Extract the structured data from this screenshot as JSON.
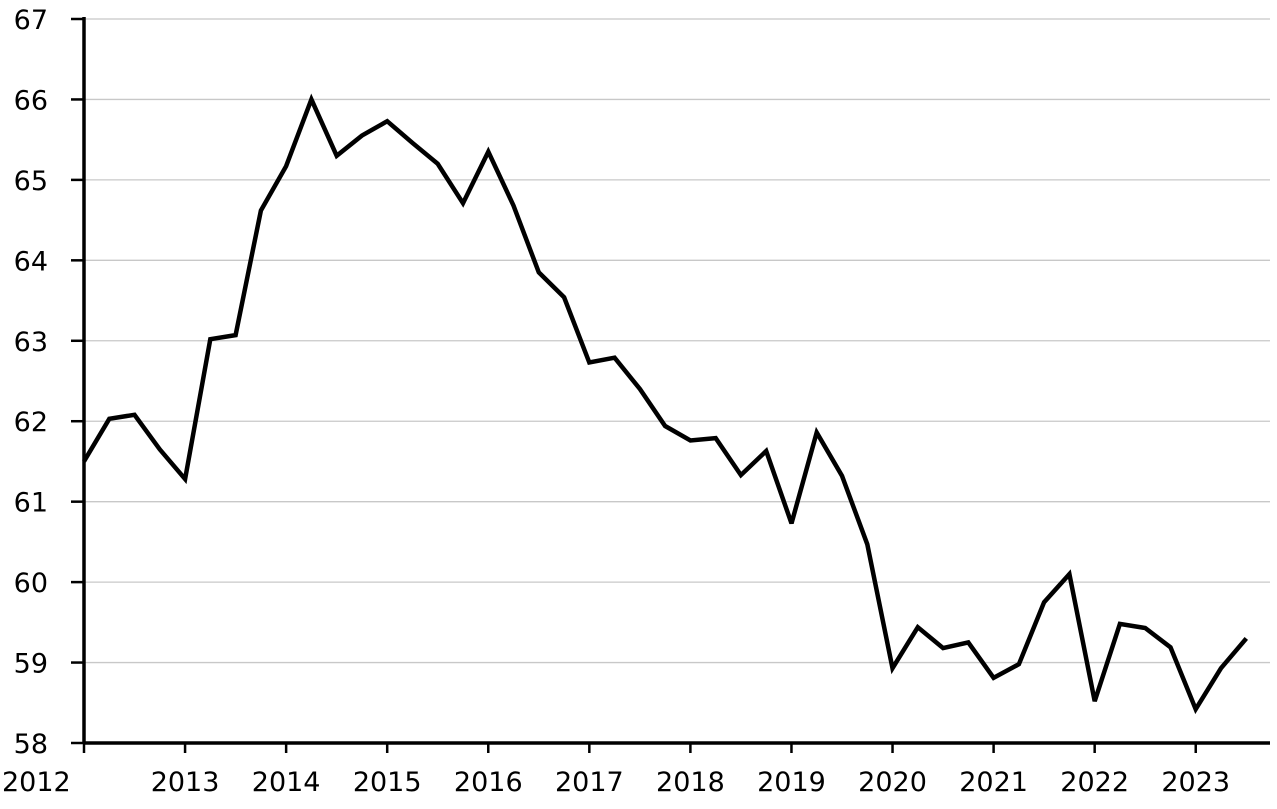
{
  "chart_data": {
    "type": "line",
    "title": "",
    "xlabel": "",
    "ylabel": "",
    "ylim": [
      58,
      67
    ],
    "xlim": [
      2012,
      2023.65
    ],
    "grid": "horizontal",
    "legend": "none",
    "colors": {
      "line": "#000000",
      "grid": "#c8c8c8",
      "axis": "#000000",
      "background": "#ffffff"
    },
    "x_tick_labels": [
      "2012",
      "2013",
      "2014",
      "2015",
      "2016",
      "2017",
      "2018",
      "2019",
      "2020",
      "2021",
      "2022",
      "2023"
    ],
    "y_tick_labels": [
      "58",
      "59",
      "60",
      "61",
      "62",
      "63",
      "64",
      "65",
      "66",
      "67"
    ],
    "x_ticks": [
      2012,
      2013,
      2014,
      2015,
      2016,
      2017,
      2018,
      2019,
      2020,
      2021,
      2022,
      2023
    ],
    "y_ticks": [
      58,
      59,
      60,
      61,
      62,
      63,
      64,
      65,
      66,
      67
    ],
    "series": [
      {
        "x": [
          2012.0,
          2012.25,
          2012.5,
          2012.75,
          2013.0,
          2013.25,
          2013.5,
          2013.75,
          2014.0,
          2014.25,
          2014.5,
          2014.75,
          2015.0,
          2015.25,
          2015.5,
          2015.75,
          2016.0,
          2016.25,
          2016.5,
          2016.75,
          2017.0,
          2017.25,
          2017.5,
          2017.75,
          2018.0,
          2018.25,
          2018.5,
          2018.75,
          2019.0,
          2019.25,
          2019.5,
          2019.75,
          2020.0,
          2020.25,
          2020.5,
          2020.75,
          2021.0,
          2021.25,
          2021.5,
          2021.75,
          2022.0,
          2022.25,
          2022.5,
          2022.75,
          2023.0,
          2023.25,
          2023.5
        ],
        "y": [
          61.5,
          62.03,
          62.08,
          61.65,
          61.28,
          63.02,
          63.07,
          64.62,
          65.17,
          66.0,
          65.3,
          65.55,
          65.73,
          65.46,
          65.2,
          64.71,
          65.35,
          64.68,
          63.85,
          63.54,
          62.73,
          62.79,
          62.4,
          61.94,
          61.76,
          61.79,
          61.33,
          61.63,
          60.73,
          61.86,
          61.32,
          60.47,
          58.93,
          59.44,
          59.18,
          59.25,
          58.81,
          58.98,
          59.75,
          60.1,
          58.52,
          59.48,
          59.43,
          59.19,
          58.42,
          58.93,
          59.3
        ]
      }
    ]
  }
}
